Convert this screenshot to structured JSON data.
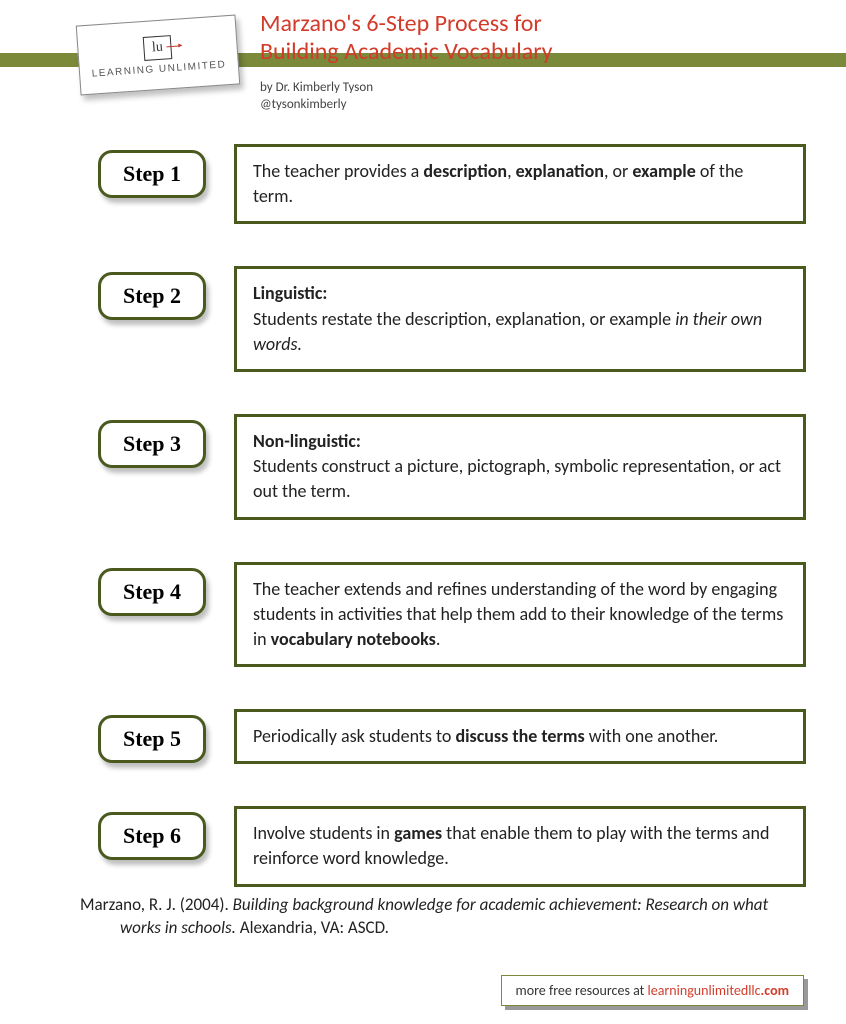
{
  "colors": {
    "olive": "#7a8a3a",
    "darkOlive": "#4a5a1f",
    "red": "#d23b2a",
    "text": "#222222",
    "bg": "#ffffff"
  },
  "logo": {
    "mark": "lu",
    "brand": "LEARNING UNLIMITED"
  },
  "title": {
    "line1": "Marzano's 6-Step Process for",
    "line2": "Building Academic Vocabulary"
  },
  "byline": {
    "author": "by Dr. Kimberly Tyson",
    "handle": "@tysonkimberly"
  },
  "steps": [
    {
      "label": "Step 1",
      "segments": [
        {
          "t": "The teacher provides a "
        },
        {
          "t": "description",
          "b": true
        },
        {
          "t": ", "
        },
        {
          "t": "explanation",
          "b": true
        },
        {
          "t": ", or "
        },
        {
          "t": "example",
          "b": true
        },
        {
          "t": " of the term."
        }
      ]
    },
    {
      "label": "Step 2",
      "segments": [
        {
          "t": "Linguistic:",
          "b": true,
          "br": true
        },
        {
          "t": "Students restate the description, explanation, or example "
        },
        {
          "t": "in their own words.",
          "i": true
        }
      ]
    },
    {
      "label": "Step 3",
      "segments": [
        {
          "t": "Non-linguistic:",
          "b": true,
          "br": true
        },
        {
          "t": "Students construct a picture, pictograph, symbolic representation, or act out the term."
        }
      ]
    },
    {
      "label": "Step 4",
      "segments": [
        {
          "t": "The teacher extends and refines understanding of the word by engaging students in activities that help them add to their knowledge of the terms in "
        },
        {
          "t": "vocabulary notebooks",
          "b": true
        },
        {
          "t": "."
        }
      ]
    },
    {
      "label": "Step 5",
      "segments": [
        {
          "t": "Periodically ask students to "
        },
        {
          "t": "discuss the terms",
          "b": true
        },
        {
          "t": " with one another."
        }
      ]
    },
    {
      "label": "Step 6",
      "segments": [
        {
          "t": "Involve students in "
        },
        {
          "t": "games",
          "b": true
        },
        {
          "t": " that enable them to play with the terms and reinforce word knowledge."
        }
      ]
    }
  ],
  "citation": {
    "author": "Marzano, R. J. (2004). ",
    "title": "Building background knowledge for academic achievement: Research on what works in schools. ",
    "publisher": "Alexandria, VA: ASCD."
  },
  "footer": {
    "prefix": "more free resources at  ",
    "link": "learningunlimitedllc",
    "suffix": ".com"
  }
}
